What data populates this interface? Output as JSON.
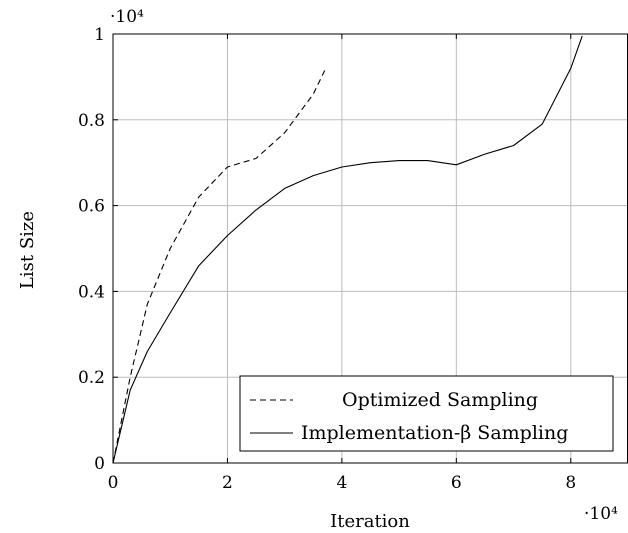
{
  "chart_data": {
    "type": "line",
    "title": "",
    "xlabel": "Iteration",
    "ylabel": "List Size",
    "x_multiplier_label": "·10⁴",
    "y_multiplier_label": "·10⁴",
    "xlim": [
      0,
      9
    ],
    "ylim": [
      0,
      1
    ],
    "x_ticks": [
      0,
      2,
      4,
      6,
      8
    ],
    "x_tick_labels": [
      "0",
      "2",
      "4",
      "6",
      "8"
    ],
    "y_ticks": [
      0,
      0.2,
      0.4,
      0.6,
      0.8,
      1
    ],
    "y_tick_labels": [
      "0",
      "0.2",
      "0.4",
      "0.6",
      "0.8",
      "1"
    ],
    "grid": true,
    "legend_position": "bottom-right",
    "series": [
      {
        "name": "Optimized Sampling",
        "style": "dashed",
        "color": "#000000",
        "x": [
          0,
          0.3,
          0.6,
          1.0,
          1.5,
          2.0,
          2.5,
          3.0,
          3.5,
          3.7
        ],
        "y": [
          0,
          0.2,
          0.37,
          0.5,
          0.62,
          0.69,
          0.71,
          0.77,
          0.86,
          0.915
        ]
      },
      {
        "name": "Implementation-β Sampling",
        "style": "solid",
        "color": "#000000",
        "x": [
          0,
          0.3,
          0.6,
          1.0,
          1.5,
          2.0,
          2.5,
          3.0,
          3.5,
          4.0,
          4.5,
          5.0,
          5.5,
          6.0,
          6.5,
          7.0,
          7.5,
          8.0,
          8.2
        ],
        "y": [
          0,
          0.17,
          0.26,
          0.35,
          0.46,
          0.53,
          0.59,
          0.64,
          0.67,
          0.69,
          0.7,
          0.705,
          0.705,
          0.695,
          0.72,
          0.74,
          0.79,
          0.92,
          0.995
        ]
      }
    ]
  }
}
